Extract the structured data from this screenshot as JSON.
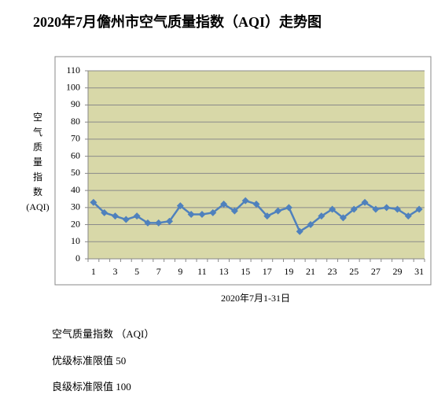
{
  "chart_data": {
    "type": "line",
    "title": "2020年7月儋州市空气质量指数（AQI）走势图",
    "ylabel": "空气质量指数(AQI)",
    "xlabel": "2020年7月1-31日",
    "categories": [
      1,
      null,
      3,
      null,
      5,
      null,
      7,
      null,
      9,
      null,
      11,
      null,
      13,
      null,
      15,
      null,
      17,
      null,
      19,
      null,
      21,
      null,
      23,
      null,
      25,
      null,
      27,
      null,
      29,
      null,
      31
    ],
    "series": [
      {
        "name": "AQI",
        "color": "#4f81bd",
        "values": [
          33,
          27,
          25,
          23,
          25,
          21,
          21,
          22,
          31,
          26,
          26,
          27,
          32,
          28,
          34,
          32,
          25,
          28,
          30,
          16,
          20,
          25,
          29,
          24,
          29,
          33,
          29,
          30,
          29,
          25,
          29
        ]
      }
    ],
    "ylim": [
      0,
      110
    ],
    "yticks": [
      0,
      10,
      20,
      30,
      40,
      50,
      60,
      70,
      80,
      90,
      100,
      110
    ],
    "grid": true,
    "plot_background": "#d8d8a8"
  },
  "notes": [
    "空气质量指数 （AQI）",
    "优级标准限值 50",
    "良级标准限值 100"
  ]
}
